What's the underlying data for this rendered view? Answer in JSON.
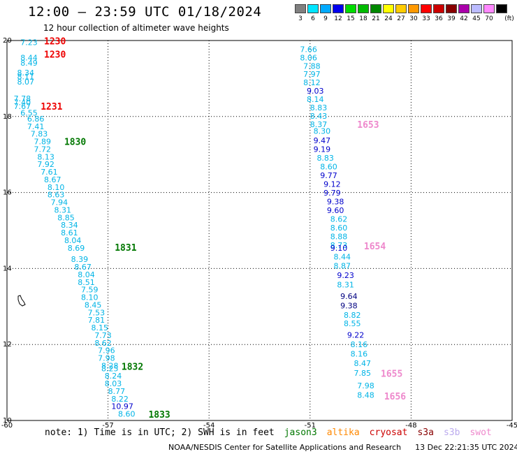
{
  "title": "12:00 — 23:59 UTC 01/18/2024",
  "subtitle": "12 hour collection of altimeter wave heights",
  "legend": {
    "unit": "(ft)",
    "bins": [
      {
        "label": "3",
        "color": "#808080"
      },
      {
        "label": "6",
        "color": "#00e5ff"
      },
      {
        "label": "9",
        "color": "#00aaff"
      },
      {
        "label": "12",
        "color": "#0000ee"
      },
      {
        "label": "15",
        "color": "#00dd00"
      },
      {
        "label": "18",
        "color": "#00bb00"
      },
      {
        "label": "21",
        "color": "#008800"
      },
      {
        "label": "24",
        "color": "#ffff00"
      },
      {
        "label": "27",
        "color": "#ffcc00"
      },
      {
        "label": "30",
        "color": "#ff9900"
      },
      {
        "label": "33",
        "color": "#ff0000"
      },
      {
        "label": "36",
        "color": "#cc0000"
      },
      {
        "label": "39",
        "color": "#880000"
      },
      {
        "label": "42",
        "color": "#aa00aa"
      },
      {
        "label": "45",
        "color": "#bbbbff"
      },
      {
        "label": "70",
        "color": "#ff88ff"
      },
      {
        "label": "",
        "color": "#000000"
      }
    ]
  },
  "map": {
    "lon_range": [
      -60,
      -45
    ],
    "lat_range": [
      10,
      20
    ],
    "lon_ticks": [
      "-60",
      "-57",
      "-54",
      "-51",
      "-48",
      "-45"
    ],
    "lat_ticks": [
      "20",
      "18",
      "16",
      "14",
      "12",
      "10"
    ],
    "grid": "dotted"
  },
  "colors": {
    "cyan": "#00b4e6",
    "blue": "#0000cc",
    "navy": "#000080",
    "red": "#ee0000",
    "green": "#007700",
    "pink": "#ee88cc"
  },
  "track_west": [
    {
      "v": "7.23",
      "lon": -59.6,
      "lat": 19.88,
      "c": "cyan"
    },
    {
      "v": "8.44",
      "lon": -59.6,
      "lat": 19.48,
      "c": "cyan"
    },
    {
      "v": "8.49",
      "lon": -59.6,
      "lat": 19.34,
      "c": "cyan"
    },
    {
      "v": "8.34",
      "lon": -59.7,
      "lat": 19.08,
      "c": "cyan"
    },
    {
      "v": "8.11",
      "lon": -59.7,
      "lat": 18.98,
      "c": "cyan"
    },
    {
      "v": "8.07",
      "lon": -59.7,
      "lat": 18.84,
      "c": "cyan"
    },
    {
      "v": "7.78",
      "lon": -59.8,
      "lat": 18.4,
      "c": "cyan"
    },
    {
      "v": "7.40",
      "lon": -59.8,
      "lat": 18.3,
      "c": "cyan"
    },
    {
      "v": "7.67",
      "lon": -59.8,
      "lat": 18.2,
      "c": "cyan"
    },
    {
      "v": "6.55",
      "lon": -59.6,
      "lat": 18.02,
      "c": "cyan"
    },
    {
      "v": "6.86",
      "lon": -59.4,
      "lat": 17.87,
      "c": "cyan"
    },
    {
      "v": "7.41",
      "lon": -59.4,
      "lat": 17.67,
      "c": "cyan"
    },
    {
      "v": "7.83",
      "lon": -59.3,
      "lat": 17.47,
      "c": "cyan"
    },
    {
      "v": "7.89",
      "lon": -59.2,
      "lat": 17.27,
      "c": "cyan"
    },
    {
      "v": "7.72",
      "lon": -59.2,
      "lat": 17.07,
      "c": "cyan"
    },
    {
      "v": "8.13",
      "lon": -59.1,
      "lat": 16.87,
      "c": "cyan"
    },
    {
      "v": "7.92",
      "lon": -59.1,
      "lat": 16.67,
      "c": "cyan"
    },
    {
      "v": "7.61",
      "lon": -59.0,
      "lat": 16.47,
      "c": "cyan"
    },
    {
      "v": "8.67",
      "lon": -58.9,
      "lat": 16.27,
      "c": "cyan"
    },
    {
      "v": "8.10",
      "lon": -58.8,
      "lat": 16.07,
      "c": "cyan"
    },
    {
      "v": "8.63",
      "lon": -58.8,
      "lat": 15.87,
      "c": "cyan"
    },
    {
      "v": "7.94",
      "lon": -58.7,
      "lat": 15.67,
      "c": "cyan"
    },
    {
      "v": "8.31",
      "lon": -58.6,
      "lat": 15.47,
      "c": "cyan"
    },
    {
      "v": "8.85",
      "lon": -58.5,
      "lat": 15.27,
      "c": "cyan"
    },
    {
      "v": "8.34",
      "lon": -58.4,
      "lat": 15.07,
      "c": "cyan"
    },
    {
      "v": "8.61",
      "lon": -58.4,
      "lat": 14.87,
      "c": "cyan"
    },
    {
      "v": "8.04",
      "lon": -58.3,
      "lat": 14.67,
      "c": "cyan"
    },
    {
      "v": "8.69",
      "lon": -58.2,
      "lat": 14.47,
      "c": "cyan"
    },
    {
      "v": "8.39",
      "lon": -58.1,
      "lat": 14.17,
      "c": "cyan"
    },
    {
      "v": "8.67",
      "lon": -58.0,
      "lat": 13.97,
      "c": "cyan"
    },
    {
      "v": "8.04",
      "lon": -57.9,
      "lat": 13.77,
      "c": "cyan"
    },
    {
      "v": "8.51",
      "lon": -57.9,
      "lat": 13.57,
      "c": "cyan"
    },
    {
      "v": "7.59",
      "lon": -57.8,
      "lat": 13.37,
      "c": "cyan"
    },
    {
      "v": "8.10",
      "lon": -57.8,
      "lat": 13.17,
      "c": "cyan"
    },
    {
      "v": "8.45",
      "lon": -57.7,
      "lat": 12.97,
      "c": "cyan"
    },
    {
      "v": "7.53",
      "lon": -57.6,
      "lat": 12.77,
      "c": "cyan"
    },
    {
      "v": "7.81",
      "lon": -57.6,
      "lat": 12.57,
      "c": "cyan"
    },
    {
      "v": "8.15",
      "lon": -57.5,
      "lat": 12.37,
      "c": "cyan"
    },
    {
      "v": "7.73",
      "lon": -57.4,
      "lat": 12.17,
      "c": "cyan"
    },
    {
      "v": "8.62",
      "lon": -57.4,
      "lat": 11.97,
      "c": "cyan"
    },
    {
      "v": "7.96",
      "lon": -57.3,
      "lat": 11.77,
      "c": "cyan"
    },
    {
      "v": "7.98",
      "lon": -57.3,
      "lat": 11.57,
      "c": "cyan"
    },
    {
      "v": "8.28",
      "lon": -57.2,
      "lat": 11.37,
      "c": "cyan"
    },
    {
      "v": "8.25",
      "lon": -57.2,
      "lat": 11.3,
      "c": "cyan"
    },
    {
      "v": "8.24",
      "lon": -57.1,
      "lat": 11.1,
      "c": "cyan"
    },
    {
      "v": "8.03",
      "lon": -57.1,
      "lat": 10.9,
      "c": "cyan"
    },
    {
      "v": "8.77",
      "lon": -57.0,
      "lat": 10.7,
      "c": "cyan"
    },
    {
      "v": "8.22",
      "lon": -56.9,
      "lat": 10.5,
      "c": "cyan"
    },
    {
      "v": "10.97",
      "lon": -56.9,
      "lat": 10.3,
      "c": "blue"
    },
    {
      "v": "8.60",
      "lon": -56.7,
      "lat": 10.1,
      "c": "cyan"
    }
  ],
  "track_east": [
    {
      "v": "7.66",
      "lon": -51.3,
      "lat": 19.7,
      "c": "cyan"
    },
    {
      "v": "8.06",
      "lon": -51.3,
      "lat": 19.48,
      "c": "cyan"
    },
    {
      "v": "7.88",
      "lon": -51.2,
      "lat": 19.26,
      "c": "cyan"
    },
    {
      "v": "7.97",
      "lon": -51.2,
      "lat": 19.04,
      "c": "cyan"
    },
    {
      "v": "8.12",
      "lon": -51.2,
      "lat": 18.82,
      "c": "cyan"
    },
    {
      "v": "9.03",
      "lon": -51.1,
      "lat": 18.6,
      "c": "blue"
    },
    {
      "v": "8.14",
      "lon": -51.1,
      "lat": 18.38,
      "c": "cyan"
    },
    {
      "v": "8.83",
      "lon": -51.0,
      "lat": 18.16,
      "c": "cyan"
    },
    {
      "v": "8.43",
      "lon": -51.0,
      "lat": 17.94,
      "c": "cyan"
    },
    {
      "v": "8.37",
      "lon": -51.0,
      "lat": 17.72,
      "c": "cyan"
    },
    {
      "v": "8.30",
      "lon": -50.9,
      "lat": 17.55,
      "c": "cyan"
    },
    {
      "v": "9.47",
      "lon": -50.9,
      "lat": 17.3,
      "c": "blue"
    },
    {
      "v": "9.19",
      "lon": -50.9,
      "lat": 17.07,
      "c": "blue"
    },
    {
      "v": "8.83",
      "lon": -50.8,
      "lat": 16.84,
      "c": "cyan"
    },
    {
      "v": "8.60",
      "lon": -50.7,
      "lat": 16.61,
      "c": "cyan"
    },
    {
      "v": "9.77",
      "lon": -50.7,
      "lat": 16.38,
      "c": "blue"
    },
    {
      "v": "9.12",
      "lon": -50.6,
      "lat": 16.15,
      "c": "blue"
    },
    {
      "v": "9.79",
      "lon": -50.6,
      "lat": 15.92,
      "c": "blue"
    },
    {
      "v": "9.38",
      "lon": -50.5,
      "lat": 15.69,
      "c": "blue"
    },
    {
      "v": "9.60",
      "lon": -50.5,
      "lat": 15.46,
      "c": "blue"
    },
    {
      "v": "8.62",
      "lon": -50.4,
      "lat": 15.23,
      "c": "cyan"
    },
    {
      "v": "8.60",
      "lon": -50.4,
      "lat": 15.0,
      "c": "cyan"
    },
    {
      "v": "8.88",
      "lon": -50.4,
      "lat": 14.77,
      "c": "cyan"
    },
    {
      "v": "8.73",
      "lon": -50.4,
      "lat": 14.54,
      "c": "cyan"
    },
    {
      "v": "9.10",
      "lon": -50.4,
      "lat": 14.47,
      "c": "blue"
    },
    {
      "v": "8.44",
      "lon": -50.3,
      "lat": 14.24,
      "c": "cyan"
    },
    {
      "v": "8.87",
      "lon": -50.3,
      "lat": 14.0,
      "c": "cyan"
    },
    {
      "v": "9.23",
      "lon": -50.2,
      "lat": 13.75,
      "c": "blue"
    },
    {
      "v": "8.31",
      "lon": -50.2,
      "lat": 13.5,
      "c": "cyan"
    },
    {
      "v": "9.64",
      "lon": -50.1,
      "lat": 13.2,
      "c": "navy"
    },
    {
      "v": "9.38",
      "lon": -50.1,
      "lat": 12.95,
      "c": "navy"
    },
    {
      "v": "8.82",
      "lon": -50.0,
      "lat": 12.7,
      "c": "cyan"
    },
    {
      "v": "8.55",
      "lon": -50.0,
      "lat": 12.48,
      "c": "cyan"
    },
    {
      "v": "9.22",
      "lon": -49.9,
      "lat": 12.18,
      "c": "blue"
    },
    {
      "v": "8.16",
      "lon": -49.8,
      "lat": 11.93,
      "c": "cyan"
    },
    {
      "v": "8.16",
      "lon": -49.8,
      "lat": 11.68,
      "c": "cyan"
    },
    {
      "v": "8.47",
      "lon": -49.7,
      "lat": 11.43,
      "c": "cyan"
    },
    {
      "v": "7.85",
      "lon": -49.7,
      "lat": 11.18,
      "c": "cyan"
    },
    {
      "v": "7.98",
      "lon": -49.6,
      "lat": 10.85,
      "c": "cyan"
    },
    {
      "v": "8.48",
      "lon": -49.6,
      "lat": 10.6,
      "c": "cyan"
    }
  ],
  "time_labels": [
    {
      "t": "1230",
      "lon": -58.9,
      "lat": 19.9,
      "c": "red"
    },
    {
      "t": "1230",
      "lon": -58.9,
      "lat": 19.55,
      "c": "red"
    },
    {
      "t": "1231",
      "lon": -59.0,
      "lat": 18.18,
      "c": "red"
    },
    {
      "t": "1830",
      "lon": -58.3,
      "lat": 17.25,
      "c": "green"
    },
    {
      "t": "1831",
      "lon": -56.8,
      "lat": 14.47,
      "c": "green"
    },
    {
      "t": "1832",
      "lon": -56.6,
      "lat": 11.33,
      "c": "green"
    },
    {
      "t": "1833",
      "lon": -55.8,
      "lat": 10.07,
      "c": "green"
    },
    {
      "t": "1653",
      "lon": -49.6,
      "lat": 17.7,
      "c": "pink"
    },
    {
      "t": "1654",
      "lon": -49.4,
      "lat": 14.5,
      "c": "pink"
    },
    {
      "t": "1655",
      "lon": -48.9,
      "lat": 11.15,
      "c": "pink"
    },
    {
      "t": "1656",
      "lon": -48.8,
      "lat": 10.55,
      "c": "pink"
    }
  ],
  "note": {
    "prefix": "note: 1) Time is in UTC; 2) SWH is in feet",
    "missions": [
      {
        "name": "jason3",
        "color": "#007700"
      },
      {
        "name": "altika",
        "color": "#ff8800"
      },
      {
        "name": "cryosat",
        "color": "#cc0000"
      },
      {
        "name": "s3a",
        "color": "#880000"
      },
      {
        "name": "s3b",
        "color": "#bbaaee"
      },
      {
        "name": "swot",
        "color": "#ee88cc"
      }
    ]
  },
  "credit": "NOAA/NESDIS Center for Satellite Applications and Research",
  "generated": "13 Dec 22:21:35 UTC 2024"
}
